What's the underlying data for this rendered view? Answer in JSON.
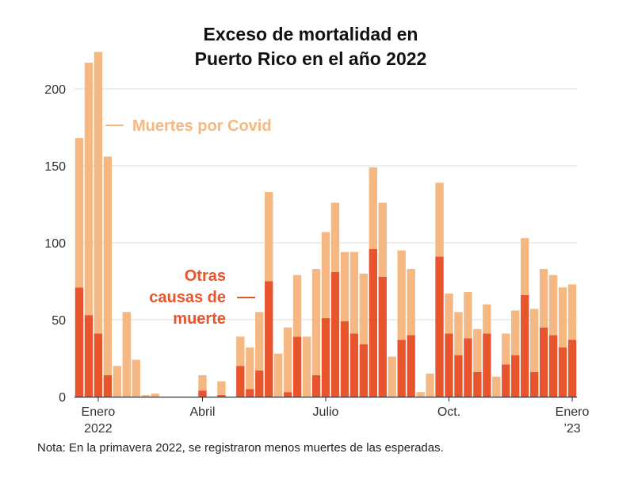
{
  "chart_data": {
    "type": "bar",
    "stacked": true,
    "title": [
      "Exceso de mortalidad en",
      "Puerto Rico en el año 2022"
    ],
    "ylim": [
      0,
      225
    ],
    "yticks": [
      0,
      50,
      100,
      150,
      200
    ],
    "grid": true,
    "xlabels": [
      {
        "lines": [
          "Enero",
          "2022"
        ],
        "index": 2
      },
      {
        "lines": [
          "Abril"
        ],
        "index": 13
      },
      {
        "lines": [
          "Julio"
        ],
        "index": 26
      },
      {
        "lines": [
          "Oct."
        ],
        "index": 39
      },
      {
        "lines": [
          "Enero",
          "’23"
        ],
        "index": 52
      }
    ],
    "series": [
      {
        "name": "Otras causas de muerte",
        "label": [
          "Otras",
          "causas de",
          "muerte"
        ],
        "color": "#e8542c",
        "values": [
          71,
          53,
          41,
          14,
          0,
          0,
          0,
          0,
          0,
          0,
          0,
          0,
          0,
          4,
          0,
          1,
          0,
          20,
          5,
          17,
          75,
          0,
          3,
          39,
          0,
          14,
          51,
          81,
          49,
          41,
          34,
          96,
          78,
          0,
          37,
          40,
          0,
          0,
          91,
          41,
          27,
          38,
          16,
          41,
          0,
          21,
          27,
          66,
          16,
          45,
          40,
          32,
          37
        ]
      },
      {
        "name": "Muertes por Covid",
        "label": [
          "Muertes por Covid"
        ],
        "color": "#f5b882",
        "values": [
          97,
          164,
          183,
          142,
          20,
          55,
          24,
          1,
          2,
          0,
          0,
          0,
          0,
          10,
          0,
          9,
          0,
          19,
          27,
          38,
          58,
          28,
          42,
          40,
          39,
          69,
          56,
          45,
          45,
          53,
          46,
          53,
          48,
          26,
          58,
          43,
          3,
          15,
          48,
          26,
          28,
          30,
          28,
          19,
          13,
          20,
          29,
          37,
          41,
          38,
          39,
          39,
          36
        ]
      }
    ]
  },
  "note": "Nota: En la primavera 2022, se registraron menos muertes de las esperadas."
}
